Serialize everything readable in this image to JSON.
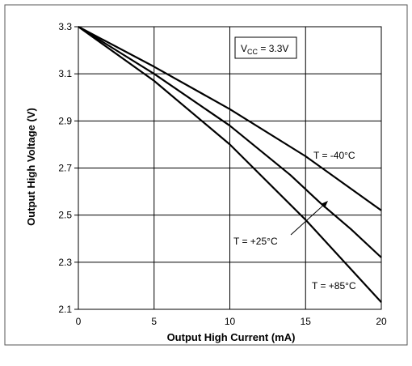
{
  "chart_data": {
    "type": "line",
    "xlabel": "Output High Current (mA)",
    "ylabel": "Output High Voltage (V)",
    "xlim": [
      0,
      20
    ],
    "ylim": [
      2.1,
      3.3
    ],
    "x_ticks": [
      "0",
      "5",
      "10",
      "15",
      "20"
    ],
    "y_ticks": [
      "2.1",
      "2.3",
      "2.5",
      "2.7",
      "2.9",
      "3.1",
      "3.3"
    ],
    "grid": true,
    "annotation_box": {
      "main": "V",
      "sub": "CC",
      "rest": " = 3.3V"
    },
    "series": [
      {
        "name": "T = -40°C",
        "x": [
          0,
          5,
          10,
          15,
          20
        ],
        "y": [
          3.3,
          3.13,
          2.95,
          2.75,
          2.52
        ]
      },
      {
        "name": "T = +25°C",
        "x": [
          0,
          5,
          10,
          14,
          16,
          18,
          20
        ],
        "y": [
          3.3,
          3.1,
          2.88,
          2.67,
          2.55,
          2.44,
          2.32
        ]
      },
      {
        "name": "T = +85°C",
        "x": [
          0,
          5,
          10,
          15,
          20
        ],
        "y": [
          3.3,
          3.07,
          2.8,
          2.48,
          2.13
        ]
      }
    ]
  }
}
